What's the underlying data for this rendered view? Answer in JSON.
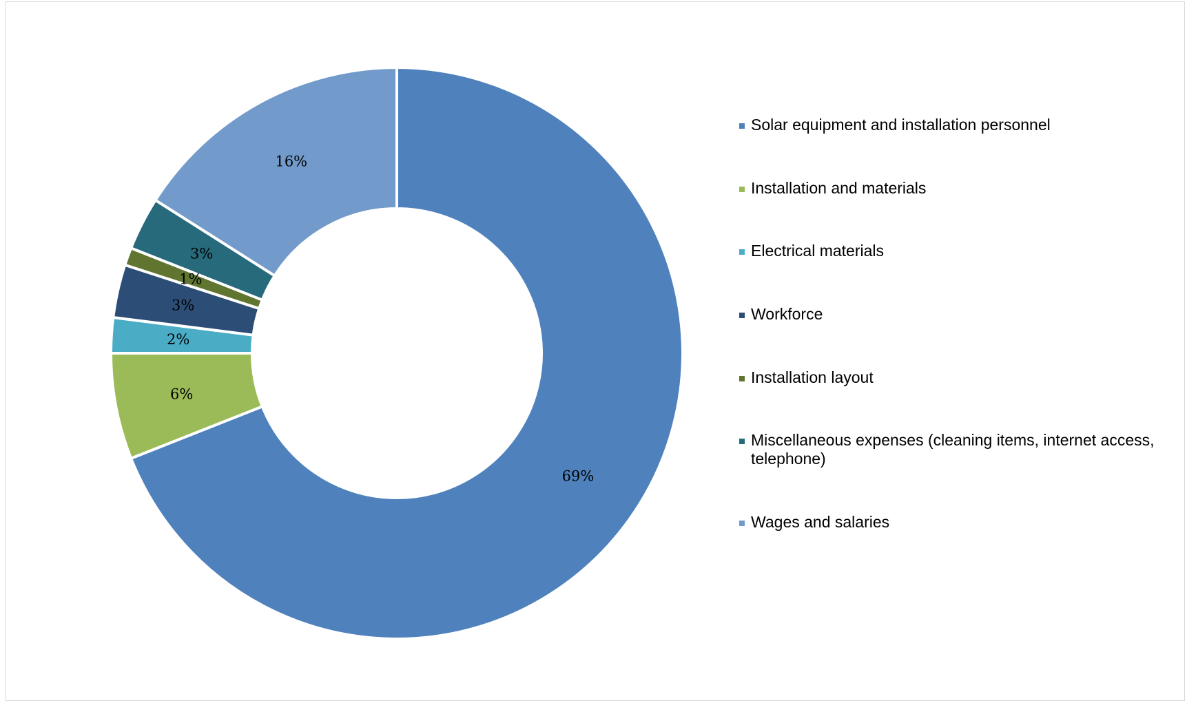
{
  "chart_data": {
    "type": "pie",
    "donut": true,
    "title": "",
    "legend_position": "right",
    "slices": [
      {
        "label": "Solar equipment and installation personnel",
        "value": 69,
        "display": "69%",
        "color": "#4F81BD"
      },
      {
        "label": "Installation and materials",
        "value": 6,
        "display": "6%",
        "color": "#9BBB59"
      },
      {
        "label": "Electrical materials",
        "value": 2,
        "display": "2%",
        "color": "#4BACC6"
      },
      {
        "label": "Workforce",
        "value": 3,
        "display": "3%",
        "color": "#2C4D75"
      },
      {
        "label": "Installation layout",
        "value": 1,
        "display": "1%",
        "color": "#5F7530"
      },
      {
        "label": "Miscellaneous expenses (cleaning items, internet access, telephone)",
        "value": 3,
        "display": "3%",
        "color": "#276A7C"
      },
      {
        "label": "Wages and salaries",
        "value": 16,
        "display": "16%",
        "color": "#729ACA"
      }
    ]
  }
}
